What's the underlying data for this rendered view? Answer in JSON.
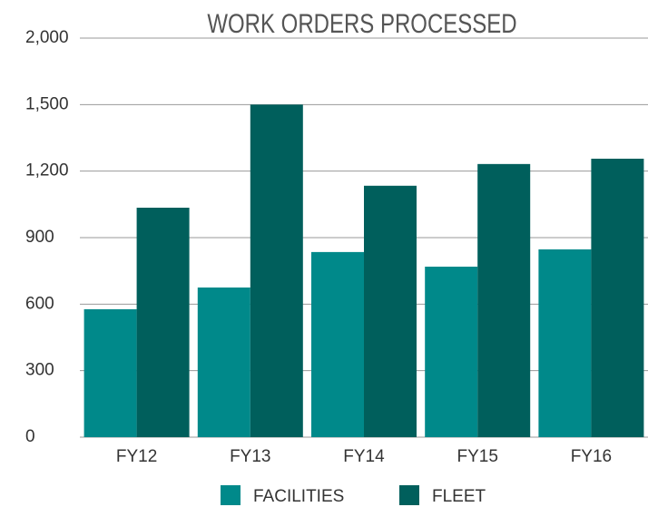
{
  "chart_data": {
    "type": "bar",
    "title": "WORK ORDERS PROCESSED",
    "categories": [
      "FY12",
      "FY13",
      "FY14",
      "FY15",
      "FY16"
    ],
    "series": [
      {
        "name": "FACILITIES",
        "color": "#00898a",
        "values": [
          577,
          675,
          835,
          769,
          847
        ]
      },
      {
        "name": "FLEET",
        "color": "#005f5c",
        "values": [
          1035,
          1500,
          1134,
          1232,
          1256
        ]
      }
    ],
    "ylim": [
      0,
      2000
    ],
    "yticks": [
      0,
      300,
      600,
      900,
      {
        "value": 1200,
        "label": "1,200"
      },
      {
        "value": 1500,
        "label": "1,500"
      },
      {
        "value": 2000,
        "label": "2,000"
      }
    ],
    "grid": true
  }
}
